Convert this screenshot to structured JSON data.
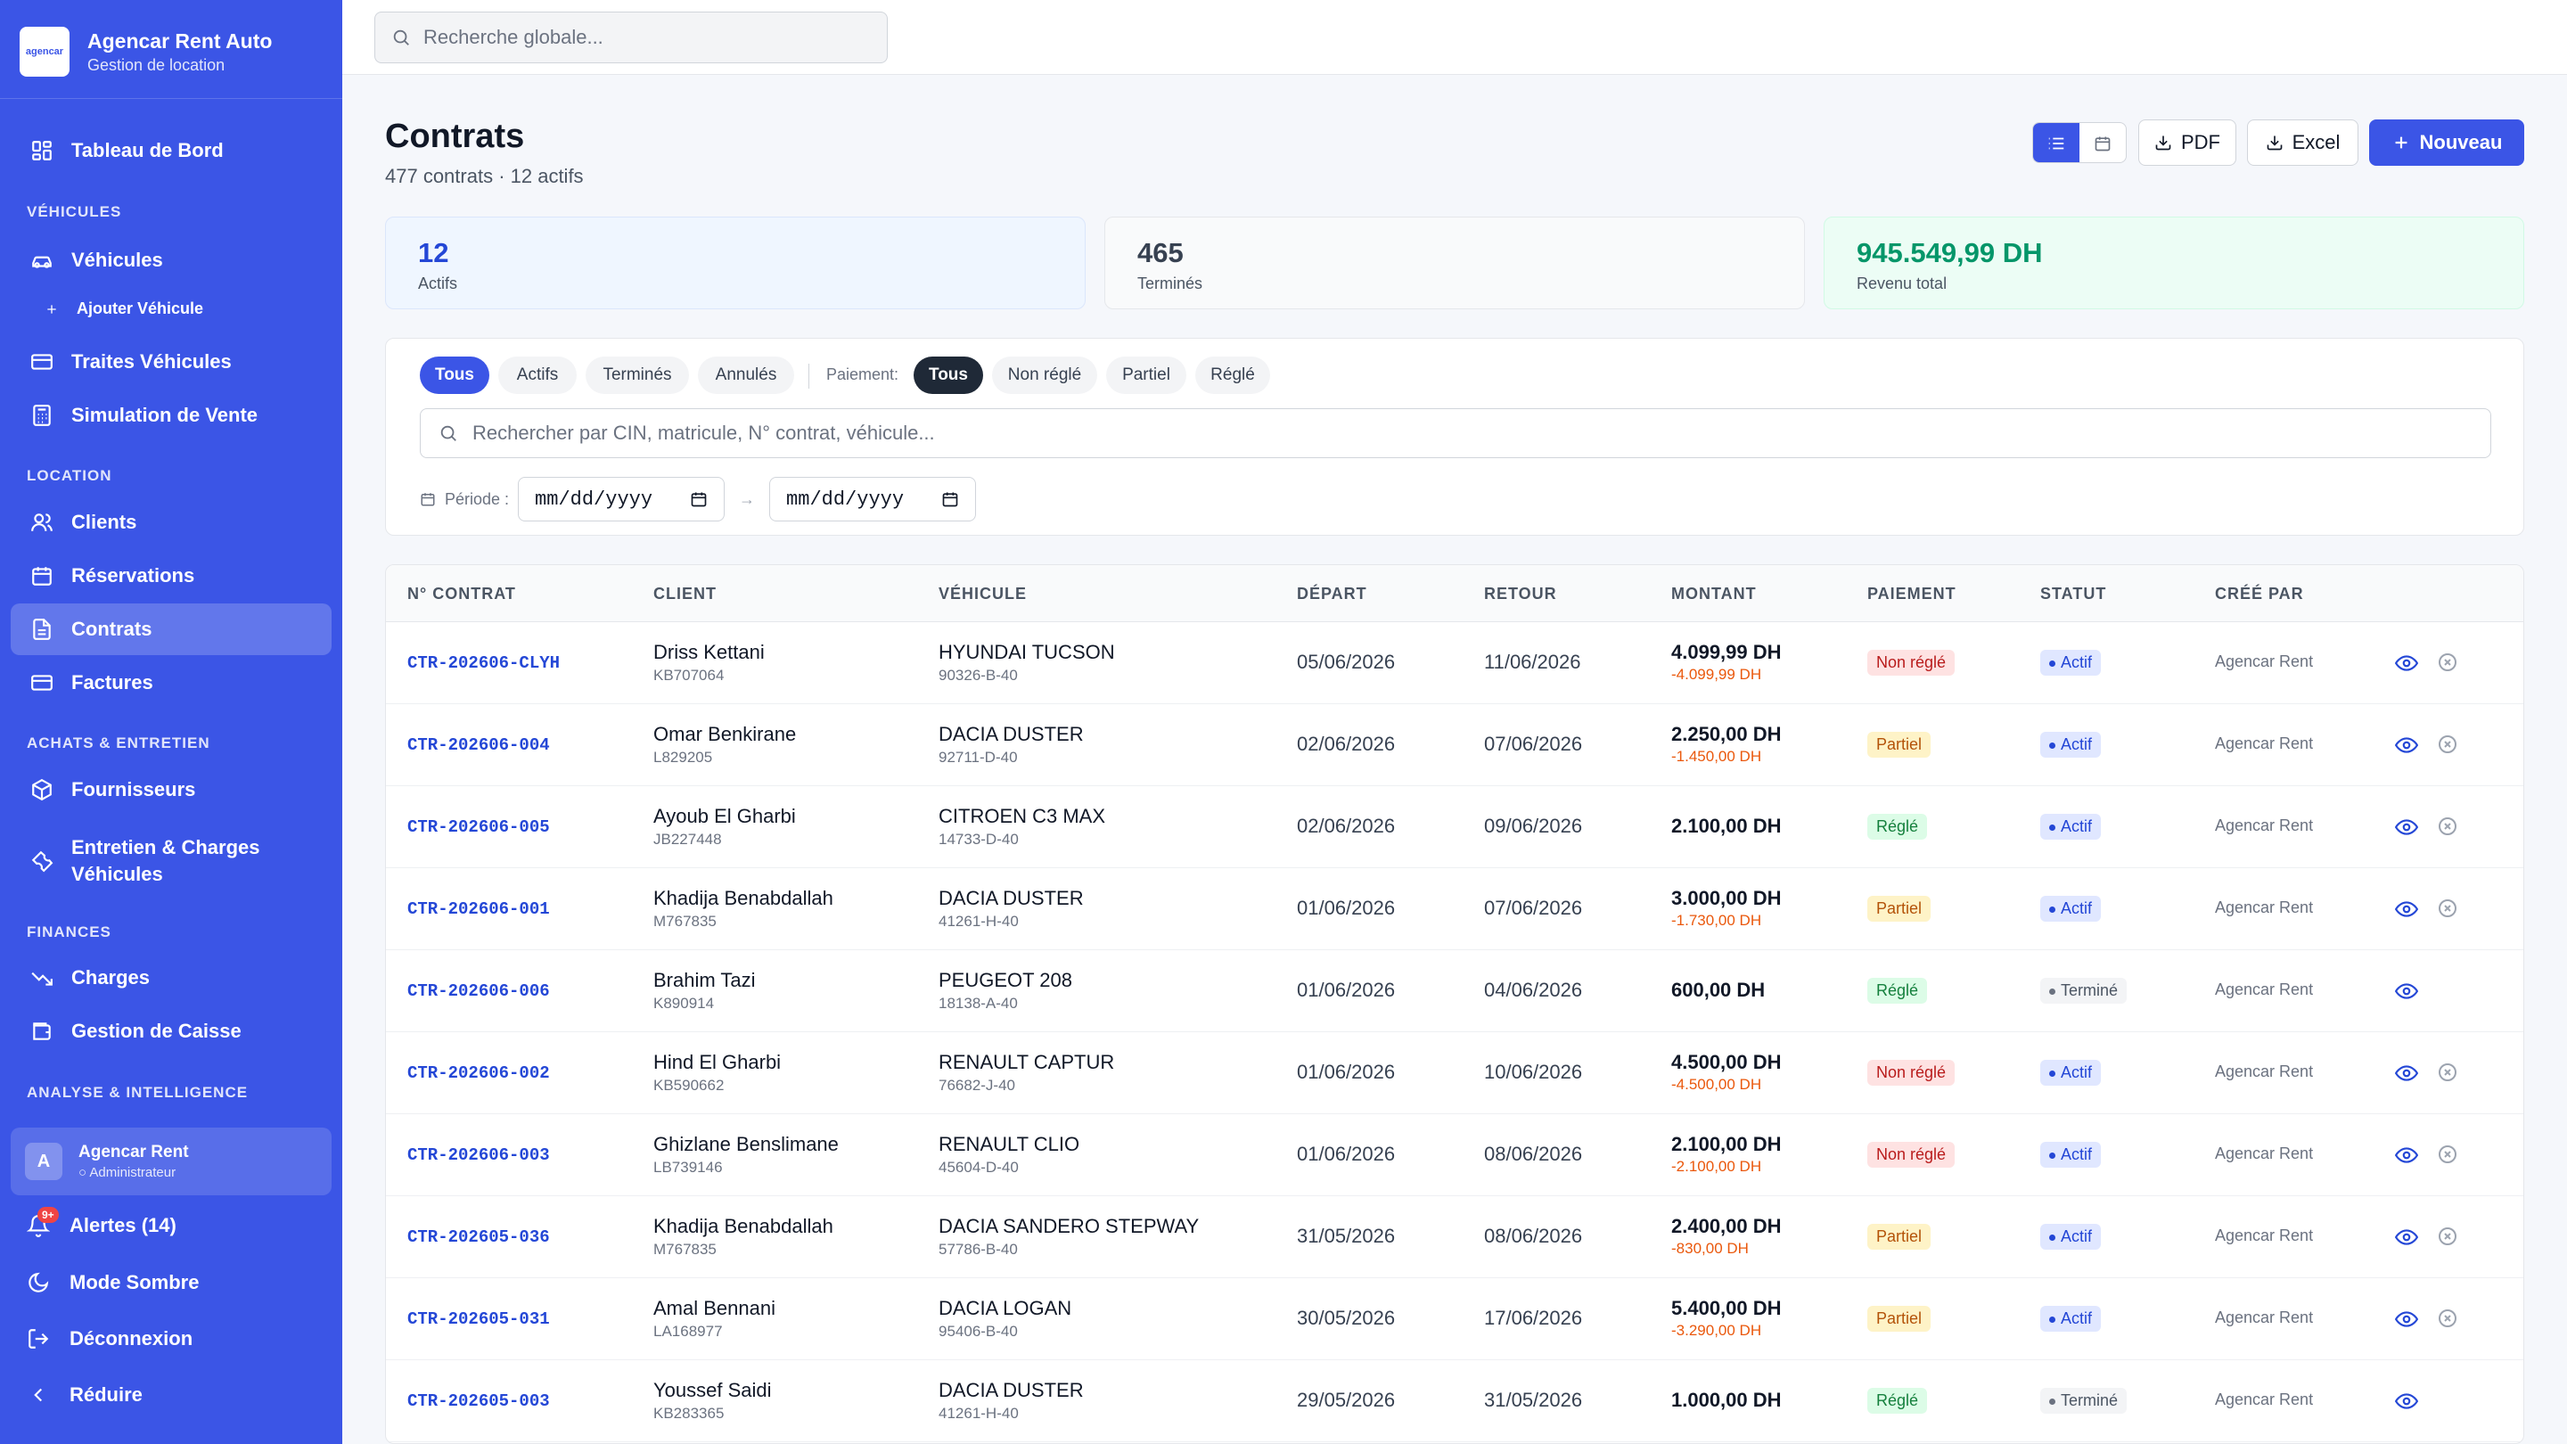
{
  "brand": {
    "title": "Agencar Rent Auto",
    "subtitle": "Gestion de location",
    "logo_text": "agencar"
  },
  "nav": {
    "dashboard": "Tableau de Bord",
    "section_vehicules": "VÉHICULES",
    "vehicules": "Véhicules",
    "add_vehicule": "Ajouter Véhicule",
    "traites": "Traites Véhicules",
    "simulation": "Simulation de Vente",
    "section_location": "LOCATION",
    "clients": "Clients",
    "reservations": "Réservations",
    "contrats": "Contrats",
    "factures": "Factures",
    "section_achats": "ACHATS & ENTRETIEN",
    "fournisseurs": "Fournisseurs",
    "entretien_1": "Entretien & Charges",
    "entretien_2": "Véhicules",
    "section_finances": "FINANCES",
    "charges": "Charges",
    "caisse": "Gestion de Caisse",
    "section_analyse": "ANALYSE & INTELLIGENCE"
  },
  "user": {
    "initial": "A",
    "name": "Agencar Rent",
    "role": "Administrateur"
  },
  "bottom": {
    "alerts": "Alertes (14)",
    "alerts_badge": "9+",
    "dark_mode": "Mode Sombre",
    "logout": "Déconnexion",
    "collapse": "Réduire"
  },
  "search": {
    "placeholder": "Recherche globale..."
  },
  "header": {
    "title": "Contrats",
    "subtitle": "477 contrats · 12 actifs",
    "pdf": "PDF",
    "excel": "Excel",
    "new": "Nouveau"
  },
  "stats": [
    {
      "value": "12",
      "label": "Actifs"
    },
    {
      "value": "465",
      "label": "Terminés"
    },
    {
      "value": "945.549,99 DH",
      "label": "Revenu total"
    }
  ],
  "filters": {
    "status": [
      "Tous",
      "Actifs",
      "Terminés",
      "Annulés"
    ],
    "payment_label": "Paiement:",
    "payment": [
      "Tous",
      "Non réglé",
      "Partiel",
      "Réglé"
    ],
    "search_placeholder": "Rechercher par CIN, matricule, N° contrat, véhicule...",
    "period_label": "Période :",
    "date_from": "mm/dd/yyyy",
    "date_to": "mm/dd/yyyy",
    "arrow": "→"
  },
  "table": {
    "headers": [
      "N° CONTRAT",
      "CLIENT",
      "VÉHICULE",
      "DÉPART",
      "RETOUR",
      "MONTANT",
      "PAIEMENT",
      "STATUT",
      "CRÉÉ PAR"
    ],
    "rows": [
      {
        "contract": "CTR-202606-CLYH",
        "client": "Driss Kettani",
        "cin": "KB707064",
        "vehicle": "HYUNDAI TUCSON",
        "plate": "90326-B-40",
        "depart": "05/06/2026",
        "retour": "11/06/2026",
        "amount": "4.099,99 DH",
        "due": "-4.099,99 DH",
        "payment": "Non réglé",
        "status": "Actif",
        "creator": "Agencar Rent"
      },
      {
        "contract": "CTR-202606-004",
        "client": "Omar Benkirane",
        "cin": "L829205",
        "vehicle": "DACIA DUSTER",
        "plate": "92711-D-40",
        "depart": "02/06/2026",
        "retour": "07/06/2026",
        "amount": "2.250,00 DH",
        "due": "-1.450,00 DH",
        "payment": "Partiel",
        "status": "Actif",
        "creator": "Agencar Rent"
      },
      {
        "contract": "CTR-202606-005",
        "client": "Ayoub El Gharbi",
        "cin": "JB227448",
        "vehicle": "CITROEN C3 MAX",
        "plate": "14733-D-40",
        "depart": "02/06/2026",
        "retour": "09/06/2026",
        "amount": "2.100,00 DH",
        "due": "",
        "payment": "Réglé",
        "status": "Actif",
        "creator": "Agencar Rent"
      },
      {
        "contract": "CTR-202606-001",
        "client": "Khadija Benabdallah",
        "cin": "M767835",
        "vehicle": "DACIA DUSTER",
        "plate": "41261-H-40",
        "depart": "01/06/2026",
        "retour": "07/06/2026",
        "amount": "3.000,00 DH",
        "due": "-1.730,00 DH",
        "payment": "Partiel",
        "status": "Actif",
        "creator": "Agencar Rent"
      },
      {
        "contract": "CTR-202606-006",
        "client": "Brahim Tazi",
        "cin": "K890914",
        "vehicle": "PEUGEOT 208",
        "plate": "18138-A-40",
        "depart": "01/06/2026",
        "retour": "04/06/2026",
        "amount": "600,00 DH",
        "due": "",
        "payment": "Réglé",
        "status": "Terminé",
        "creator": "Agencar Rent"
      },
      {
        "contract": "CTR-202606-002",
        "client": "Hind El Gharbi",
        "cin": "KB590662",
        "vehicle": "RENAULT CAPTUR",
        "plate": "76682-J-40",
        "depart": "01/06/2026",
        "retour": "10/06/2026",
        "amount": "4.500,00 DH",
        "due": "-4.500,00 DH",
        "payment": "Non réglé",
        "status": "Actif",
        "creator": "Agencar Rent"
      },
      {
        "contract": "CTR-202606-003",
        "client": "Ghizlane Benslimane",
        "cin": "LB739146",
        "vehicle": "RENAULT CLIO",
        "plate": "45604-D-40",
        "depart": "01/06/2026",
        "retour": "08/06/2026",
        "amount": "2.100,00 DH",
        "due": "-2.100,00 DH",
        "payment": "Non réglé",
        "status": "Actif",
        "creator": "Agencar Rent"
      },
      {
        "contract": "CTR-202605-036",
        "client": "Khadija Benabdallah",
        "cin": "M767835",
        "vehicle": "DACIA SANDERO STEPWAY",
        "plate": "57786-B-40",
        "depart": "31/05/2026",
        "retour": "08/06/2026",
        "amount": "2.400,00 DH",
        "due": "-830,00 DH",
        "payment": "Partiel",
        "status": "Actif",
        "creator": "Agencar Rent"
      },
      {
        "contract": "CTR-202605-031",
        "client": "Amal Bennani",
        "cin": "LA168977",
        "vehicle": "DACIA LOGAN",
        "plate": "95406-B-40",
        "depart": "30/05/2026",
        "retour": "17/06/2026",
        "amount": "5.400,00 DH",
        "due": "-3.290,00 DH",
        "payment": "Partiel",
        "status": "Actif",
        "creator": "Agencar Rent"
      },
      {
        "contract": "CTR-202605-003",
        "client": "Youssef Saidi",
        "cin": "KB283365",
        "vehicle": "DACIA DUSTER",
        "plate": "41261-H-40",
        "depart": "29/05/2026",
        "retour": "31/05/2026",
        "amount": "1.000,00 DH",
        "due": "",
        "payment": "Réglé",
        "status": "Terminé",
        "creator": "Agencar Rent"
      }
    ]
  },
  "colors": {
    "accent": "#3b55e6",
    "contract_link": "#2447d6",
    "due": "#ea580c",
    "revenue": "#059669"
  }
}
